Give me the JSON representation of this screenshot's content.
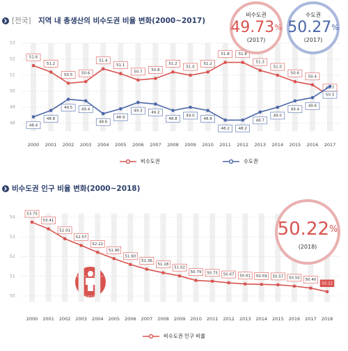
{
  "chart_data": [
    {
      "type": "line",
      "title_tag": "[전국]",
      "title": "지역 내 총생산의 비수도권 비율 변화(2000~2017)",
      "categories": [
        "2000",
        "2001",
        "2002",
        "2003",
        "2004",
        "2005",
        "2006",
        "2007",
        "2008",
        "2009",
        "2010",
        "2011",
        "2012",
        "2013",
        "2014",
        "2015",
        "2016",
        "2017"
      ],
      "series": [
        {
          "name": "비수도권",
          "color": "#d9534f",
          "label_side": "above",
          "values": [
            51.6,
            51.2,
            50.5,
            50.6,
            51.4,
            51.1,
            50.7,
            50.8,
            51.2,
            51.0,
            51.2,
            51.8,
            51.8,
            51.3,
            51.0,
            50.6,
            50.4,
            49.7
          ],
          "value_labels": [
            "51.6",
            "51.2",
            "50.5",
            "50.6",
            "51.4",
            "51.1",
            "50.7",
            "50.8",
            "51.2",
            "51.0",
            "51.2",
            "51.8",
            "51.8",
            "51.3",
            "51.0",
            "50.6",
            "50.4",
            "49.7"
          ]
        },
        {
          "name": "수도권",
          "color": "#4a66a8",
          "label_side": "below",
          "values": [
            48.4,
            48.8,
            49.5,
            49.4,
            48.6,
            48.9,
            49.3,
            49.2,
            48.8,
            49.0,
            48.8,
            48.2,
            48.2,
            48.7,
            49.0,
            49.4,
            49.6,
            50.3
          ],
          "value_labels": [
            "48.4",
            "48.8",
            "49.5",
            "49.4",
            "48.6",
            "48.9",
            "49.3",
            "49.2",
            "48.8",
            "49.0",
            "48.8",
            "48.2",
            "48.2",
            "48.7",
            "49.0",
            "49.4",
            "49.6",
            "50.3"
          ]
        }
      ],
      "ylim": [
        47.5,
        53
      ],
      "yticks": [
        48,
        49,
        50,
        51,
        52,
        53
      ],
      "grid": true,
      "callouts": [
        {
          "label": "비수도권",
          "value": 49.73,
          "unit": "%",
          "year": "(2017)",
          "color": "#d9534f",
          "ring": "#eab0b0"
        },
        {
          "label": "수도권",
          "value": 50.27,
          "unit": "%",
          "year": "(2017)",
          "color": "#4a66a8",
          "ring": "#aab8dc"
        }
      ]
    },
    {
      "type": "line",
      "title": "비수도권 인구 비율 변화(2000~2018)",
      "categories": [
        "2000",
        "2001",
        "2002",
        "2003",
        "2004",
        "2005",
        "2006",
        "2007",
        "2008",
        "2009",
        "2010",
        "2011",
        "2012",
        "2013",
        "2014",
        "2015",
        "2016",
        "2017",
        "2018"
      ],
      "series": [
        {
          "name": "비수도권 인구 비율",
          "color": "#d9534f",
          "label_side": "above",
          "values": [
            53.75,
            53.41,
            52.91,
            52.57,
            52.22,
            51.9,
            51.6,
            51.36,
            51.18,
            51.02,
            50.79,
            50.75,
            50.67,
            50.61,
            50.59,
            50.57,
            50.5,
            50.4,
            50.22
          ],
          "value_labels": [
            "53.75",
            "53.41",
            "52.91",
            "52.57",
            "52.22",
            "51.90",
            "51.60",
            "51.36",
            "51.18",
            "51.02",
            "50.79",
            "50.75",
            "50.67",
            "50.61",
            "50.59",
            "50.57",
            "50.50",
            "50.40",
            "50.22"
          ]
        }
      ],
      "ylim": [
        49.7,
        54.2
      ],
      "yticks": [
        50,
        51,
        52,
        53,
        54
      ],
      "grid": true,
      "callouts": [
        {
          "value": 50.22,
          "unit": "%",
          "year": "(2018)",
          "color": "#d9534f",
          "ring": "#eab0b0"
        }
      ]
    }
  ]
}
